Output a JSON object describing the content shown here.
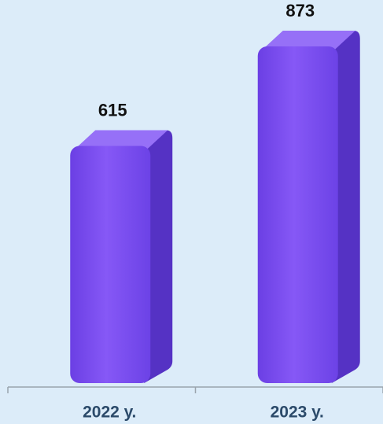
{
  "chart_data": {
    "type": "bar",
    "categories": [
      "2022 у.",
      "2023 у."
    ],
    "values": [
      615,
      873
    ],
    "color": "#7a4cf0"
  }
}
